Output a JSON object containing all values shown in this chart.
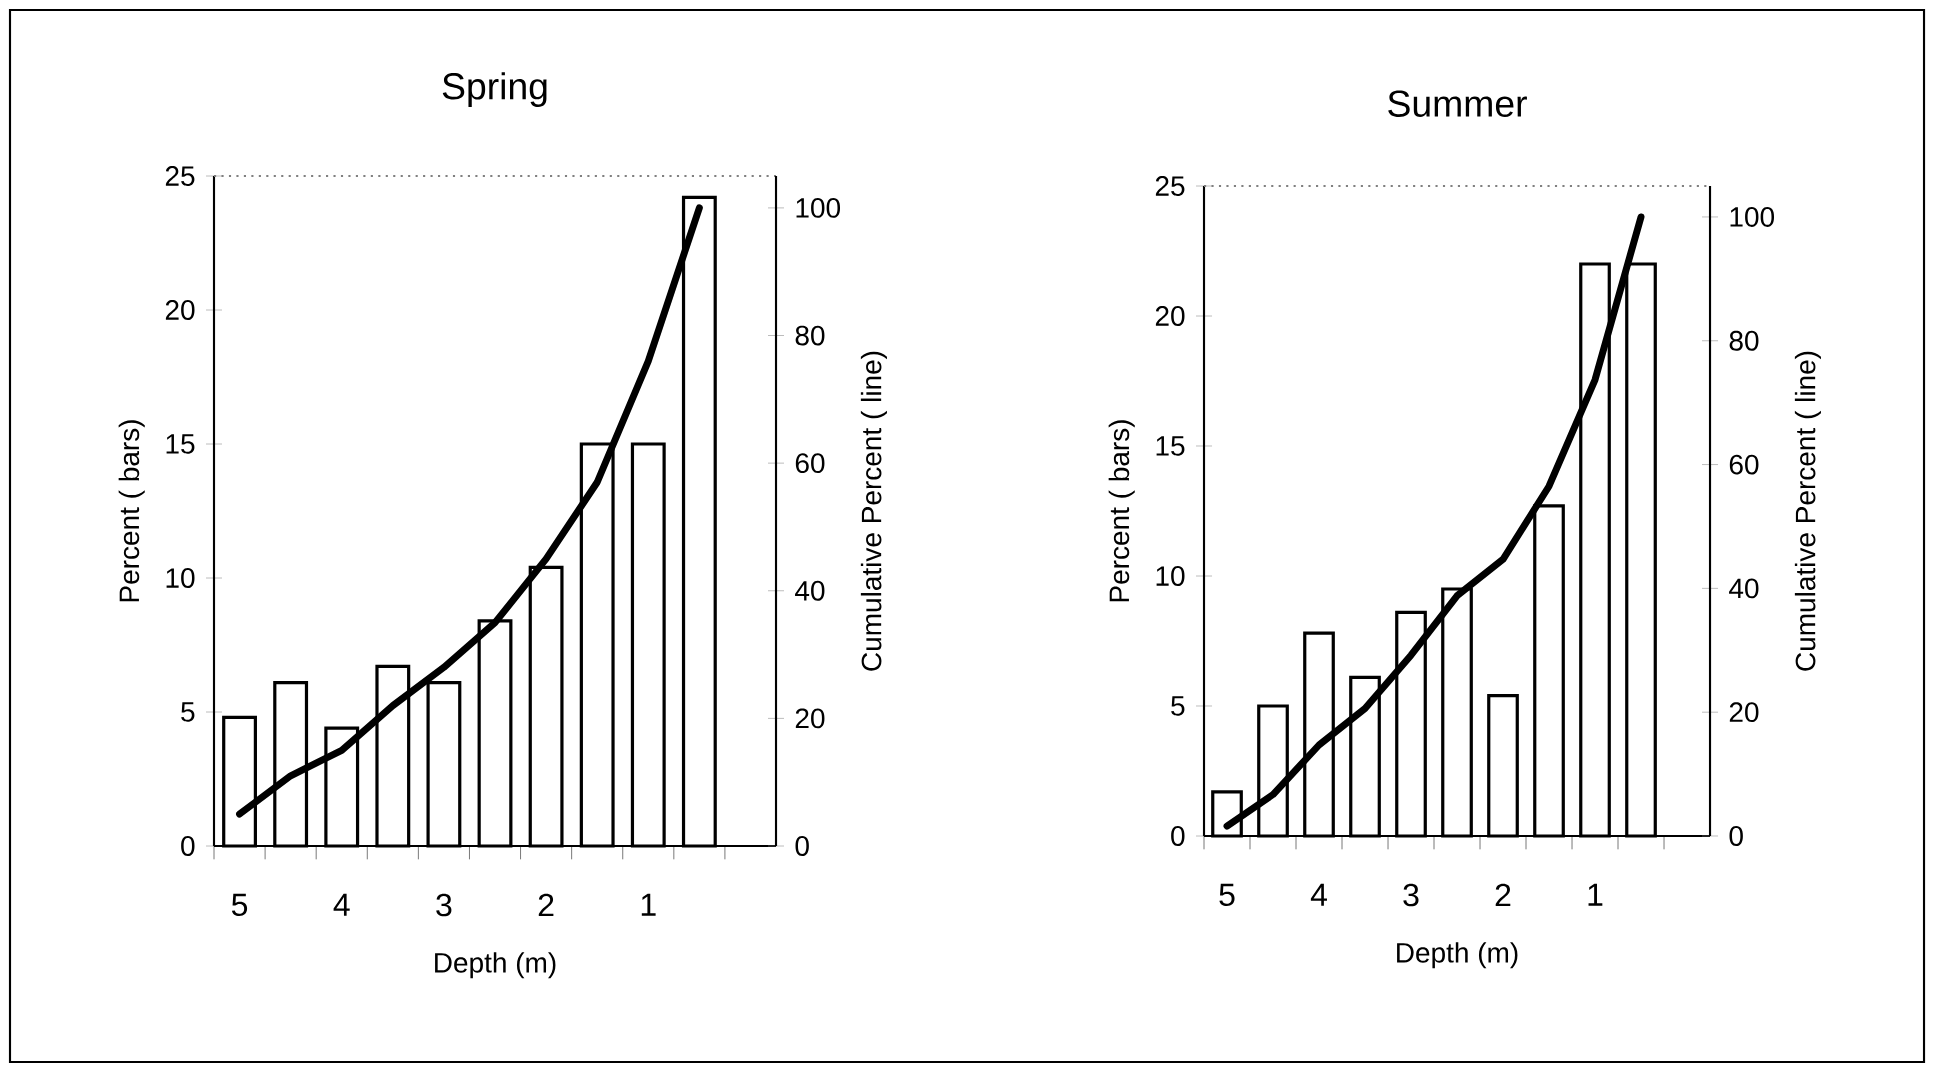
{
  "chart_data": [
    {
      "type": "bar",
      "title": "Spring",
      "xlabel": "Depth (m)",
      "ylabel": "Percent ( bars)",
      "y2label": "Cumulative Percent ( line)",
      "categories": [
        "5",
        null,
        "4",
        null,
        "3",
        null,
        "2",
        null,
        "1",
        null
      ],
      "ylim": [
        0,
        25
      ],
      "yticks": [
        0,
        5,
        10,
        15,
        20,
        25
      ],
      "y2lim": [
        0,
        105
      ],
      "y2ticks": [
        0,
        20,
        40,
        60,
        80,
        100
      ],
      "series": [
        {
          "color": "#ffffff",
          "values": [
            4.8,
            6.1,
            4.4,
            6.7,
            6.1,
            8.4,
            10.4,
            15.0,
            15.0,
            24.2
          ]
        },
        {
          "type": "line",
          "axis": "y2",
          "color": "#000000",
          "values": [
            5,
            11,
            15,
            22,
            28,
            35,
            45,
            57,
            76,
            100
          ]
        }
      ]
    },
    {
      "type": "bar",
      "title": "Summer",
      "xlabel": "Depth (m)",
      "ylabel": "Percent ( bars)",
      "y2label": "Cumulative Percent ( line)",
      "categories": [
        "5",
        null,
        "4",
        null,
        "3",
        null,
        "2",
        null,
        "1",
        null
      ],
      "ylim": [
        0,
        25
      ],
      "yticks": [
        0,
        5,
        10,
        15,
        20,
        25
      ],
      "y2lim": [
        0,
        105
      ],
      "y2ticks": [
        0,
        20,
        40,
        60,
        80,
        100
      ],
      "series": [
        {
          "color": "#ffffff",
          "values": [
            1.7,
            5.0,
            7.8,
            6.1,
            8.6,
            9.5,
            5.4,
            12.7,
            22.0,
            22.0
          ]
        },
        {
          "type": "line",
          "axis": "y2",
          "color": "#000000",
          "values": [
            1.6,
            6.7,
            14.7,
            20.6,
            29.2,
            38.8,
            44.7,
            56.5,
            73.7,
            100
          ]
        }
      ]
    }
  ]
}
